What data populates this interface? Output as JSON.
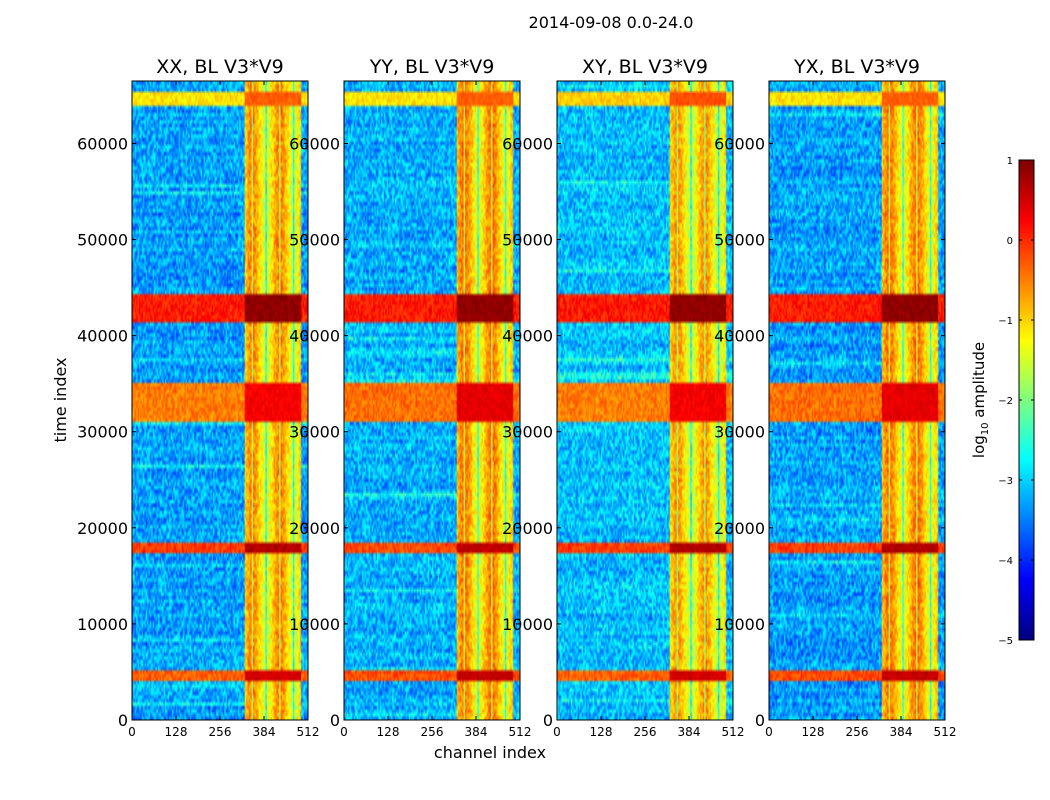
{
  "figure": {
    "suptitle": "2014-09-08 0.0-24.0",
    "xlabel": "channel index",
    "ylabel": "time index"
  },
  "colors": {
    "background": "#ffffff",
    "colormap": [
      "#00007f",
      "#0000ff",
      "#007fff",
      "#00ffff",
      "#7fff7f",
      "#ffff00",
      "#ff7f00",
      "#ff0000",
      "#7f0000"
    ]
  },
  "chart_data": [
    {
      "type": "heatmap",
      "title": "XX, BL V3*V9",
      "xlim": [
        0,
        512
      ],
      "ylim": [
        0,
        66500
      ],
      "xticks": [
        "0",
        "128",
        "256",
        "384",
        "512"
      ],
      "xtick_values": [
        0,
        128,
        256,
        384,
        512
      ],
      "yticks": [
        "0",
        "10000",
        "20000",
        "30000",
        "40000",
        "50000",
        "60000"
      ],
      "ytick_values": [
        0,
        10000,
        20000,
        30000,
        40000,
        50000,
        60000
      ],
      "background_log10_amplitude": -3.3,
      "flagged_channel_range": [
        330,
        490
      ],
      "flagged_level": -1.0,
      "hot_time_bands": [
        [
          41500,
          44500,
          0.9
        ],
        [
          31000,
          35000,
          0.3
        ],
        [
          17400,
          18500,
          0.7
        ],
        [
          4000,
          5000,
          0.5
        ],
        [
          63800,
          65300,
          -0.3
        ]
      ]
    },
    {
      "type": "heatmap",
      "title": "YY, BL V3*V9",
      "xlim": [
        0,
        512
      ],
      "ylim": [
        0,
        66500
      ],
      "xticks": [
        "0",
        "128",
        "256",
        "384",
        "512"
      ],
      "xtick_values": [
        0,
        128,
        256,
        384,
        512
      ],
      "yticks": [
        "0",
        "10000",
        "20000",
        "30000",
        "40000",
        "50000",
        "60000"
      ],
      "ytick_values": [
        0,
        10000,
        20000,
        30000,
        40000,
        50000,
        60000
      ],
      "background_log10_amplitude": -3.2,
      "flagged_channel_range": [
        330,
        490
      ],
      "flagged_level": -0.9,
      "hot_time_bands": [
        [
          41500,
          44500,
          0.9
        ],
        [
          31000,
          35000,
          0.4
        ],
        [
          17400,
          18500,
          0.6
        ],
        [
          4000,
          5000,
          0.6
        ],
        [
          63800,
          65300,
          -0.3
        ]
      ]
    },
    {
      "type": "heatmap",
      "title": "XY, BL V3*V9",
      "xlim": [
        0,
        512
      ],
      "ylim": [
        0,
        66500
      ],
      "xticks": [
        "0",
        "128",
        "256",
        "384",
        "512"
      ],
      "xtick_values": [
        0,
        128,
        256,
        384,
        512
      ],
      "yticks": [
        "0",
        "10000",
        "20000",
        "30000",
        "40000",
        "50000",
        "60000"
      ],
      "ytick_values": [
        0,
        10000,
        20000,
        30000,
        40000,
        50000,
        60000
      ],
      "background_log10_amplitude": -3.1,
      "flagged_channel_range": [
        330,
        490
      ],
      "flagged_level": -1.1,
      "hot_time_bands": [
        [
          41500,
          44500,
          0.9
        ],
        [
          31000,
          35000,
          0.3
        ],
        [
          17400,
          18500,
          0.7
        ],
        [
          4000,
          5000,
          0.5
        ],
        [
          63800,
          65300,
          -0.2
        ]
      ]
    },
    {
      "type": "heatmap",
      "title": "YX, BL V3*V9",
      "xlim": [
        0,
        512
      ],
      "ylim": [
        0,
        66500
      ],
      "xticks": [
        "0",
        "128",
        "256",
        "384",
        "512"
      ],
      "xtick_values": [
        0,
        128,
        256,
        384,
        512
      ],
      "yticks": [
        "0",
        "10000",
        "20000",
        "30000",
        "40000",
        "50000",
        "60000"
      ],
      "ytick_values": [
        0,
        10000,
        20000,
        30000,
        40000,
        50000,
        60000
      ],
      "background_log10_amplitude": -3.3,
      "flagged_channel_range": [
        330,
        490
      ],
      "flagged_level": -0.9,
      "hot_time_bands": [
        [
          41500,
          44500,
          0.9
        ],
        [
          31000,
          35000,
          0.4
        ],
        [
          17400,
          18500,
          0.7
        ],
        [
          4000,
          5000,
          0.6
        ],
        [
          63800,
          65300,
          -0.3
        ]
      ]
    }
  ],
  "colorbar": {
    "label_prefix": "log",
    "label_subscript": "10",
    "label_suffix": " amplitude",
    "range": [
      -5,
      1
    ],
    "ticks": [
      "1",
      "0",
      "−1",
      "−2",
      "−3",
      "−4",
      "−5"
    ],
    "tick_values": [
      1,
      0,
      -1,
      -2,
      -3,
      -4,
      -5
    ]
  }
}
